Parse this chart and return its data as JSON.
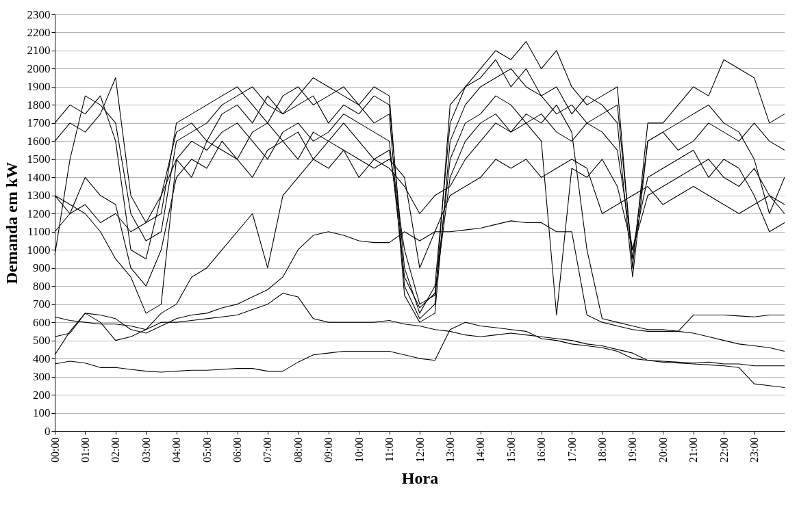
{
  "chart_data": {
    "type": "line",
    "xlabel": "Hora",
    "ylabel": "Demanda em kW",
    "grid": "y",
    "legend": false,
    "xlim": [
      0,
      24
    ],
    "ylim": [
      0,
      2300
    ],
    "xticks": [
      {
        "value": 0,
        "label": "00:00"
      },
      {
        "value": 1,
        "label": "01:00"
      },
      {
        "value": 2,
        "label": "02:00"
      },
      {
        "value": 3,
        "label": "03:00"
      },
      {
        "value": 4,
        "label": "04:00"
      },
      {
        "value": 5,
        "label": "05:00"
      },
      {
        "value": 6,
        "label": "06:00"
      },
      {
        "value": 7,
        "label": "07:00"
      },
      {
        "value": 8,
        "label": "08:00"
      },
      {
        "value": 9,
        "label": "09:00"
      },
      {
        "value": 10,
        "label": "10:00"
      },
      {
        "value": 11,
        "label": "11:00"
      },
      {
        "value": 12,
        "label": "12:00"
      },
      {
        "value": 13,
        "label": "13:00"
      },
      {
        "value": 14,
        "label": "14:00"
      },
      {
        "value": 15,
        "label": "15:00"
      },
      {
        "value": 16,
        "label": "16:00"
      },
      {
        "value": 17,
        "label": "17:00"
      },
      {
        "value": 18,
        "label": "18:00"
      },
      {
        "value": 19,
        "label": "19:00"
      },
      {
        "value": 20,
        "label": "20:00"
      },
      {
        "value": 21,
        "label": "21:00"
      },
      {
        "value": 22,
        "label": "22:00"
      },
      {
        "value": 23,
        "label": "23:00"
      }
    ],
    "yticks": [
      0,
      100,
      200,
      300,
      400,
      500,
      600,
      700,
      800,
      900,
      1000,
      1100,
      1200,
      1300,
      1400,
      1500,
      1600,
      1700,
      1800,
      1900,
      2000,
      2100,
      2200,
      2300
    ],
    "x": [
      0,
      0.5,
      1,
      1.5,
      2,
      2.5,
      3,
      3.5,
      4,
      4.5,
      5,
      5.5,
      6,
      6.5,
      7,
      7.5,
      8,
      8.5,
      9,
      9.5,
      10,
      10.5,
      11,
      11.5,
      12,
      12.5,
      13,
      13.5,
      14,
      14.5,
      15,
      15.5,
      16,
      16.5,
      17,
      17.5,
      18,
      18.5,
      19,
      19.5,
      20,
      20.5,
      21,
      21.5,
      22,
      22.5,
      23,
      23.5,
      24
    ],
    "series": [
      {
        "color": "#000000",
        "values": [
          370,
          385,
          375,
          350,
          350,
          340,
          330,
          325,
          330,
          335,
          335,
          340,
          345,
          345,
          330,
          330,
          380,
          420,
          430,
          440,
          440,
          440,
          440,
          420,
          400,
          390,
          560,
          600,
          580,
          570,
          560,
          550,
          510,
          500,
          480,
          470,
          460,
          440,
          400,
          390,
          385,
          380,
          375,
          380,
          370,
          370,
          360,
          360,
          360
        ]
      },
      {
        "color": "#000000",
        "values": [
          630,
          610,
          600,
          590,
          590,
          580,
          560,
          600,
          600,
          610,
          620,
          630,
          640,
          670,
          700,
          760,
          740,
          620,
          600,
          600,
          600,
          600,
          610,
          590,
          580,
          560,
          550,
          530,
          520,
          530,
          540,
          530,
          520,
          510,
          500,
          480,
          470,
          450,
          430,
          390,
          380,
          375,
          370,
          365,
          360,
          350,
          260,
          250,
          240
        ]
      },
      {
        "color": "#000000",
        "values": [
          520,
          540,
          650,
          640,
          620,
          560,
          540,
          580,
          620,
          640,
          650,
          680,
          700,
          740,
          780,
          850,
          1000,
          1080,
          1100,
          1080,
          1050,
          1040,
          1040,
          1100,
          1050,
          1100,
          1100,
          1110,
          1120,
          1140,
          1160,
          1150,
          1150,
          1100,
          1100,
          640,
          600,
          580,
          560,
          550,
          550,
          550,
          640,
          640,
          640,
          635,
          630,
          640,
          640
        ]
      },
      {
        "color": "#000000",
        "values": [
          1700,
          1800,
          1750,
          1850,
          1600,
          1000,
          950,
          1300,
          1650,
          1700,
          1600,
          1750,
          1800,
          1700,
          1850,
          1750,
          1800,
          1850,
          1700,
          1800,
          1750,
          1850,
          1800,
          900,
          650,
          800,
          1700,
          1900,
          1950,
          2050,
          1900,
          2000,
          1850,
          1750,
          1800,
          1700,
          1750,
          1800,
          950,
          1600,
          1650,
          1700,
          1750,
          1800,
          1700,
          1650,
          1500,
          1200,
          1400
        ]
      },
      {
        "color": "#000000",
        "values": [
          1300,
          1200,
          1400,
          1300,
          1250,
          900,
          800,
          1000,
          1400,
          1500,
          1450,
          1600,
          1500,
          1400,
          1550,
          1600,
          1650,
          1500,
          1600,
          1700,
          1600,
          1500,
          1550,
          1000,
          700,
          750,
          1500,
          1700,
          1750,
          1850,
          1800,
          1700,
          1750,
          1650,
          1600,
          1700,
          1650,
          1550,
          1000,
          1400,
          1450,
          1500,
          1550,
          1400,
          1500,
          1450,
          1300,
          1100,
          1150
        ]
      },
      {
        "color": "#000000",
        "values": [
          1600,
          1700,
          1650,
          1750,
          1950,
          1300,
          1150,
          1200,
          1700,
          1750,
          1800,
          1850,
          1900,
          1800,
          1700,
          1850,
          1900,
          1800,
          1850,
          1900,
          1800,
          1900,
          1850,
          800,
          620,
          700,
          1800,
          1900,
          2000,
          2100,
          2050,
          2150,
          2000,
          2100,
          1900,
          1800,
          1850,
          1900,
          900,
          1700,
          1700,
          1800,
          1900,
          1850,
          2050,
          2000,
          1950,
          1700,
          1750
        ]
      },
      {
        "color": "#000000",
        "values": [
          1300,
          1250,
          1200,
          1100,
          950,
          850,
          650,
          700,
          1500,
          1600,
          1550,
          1650,
          1700,
          1600,
          1500,
          1650,
          1700,
          1600,
          1650,
          1750,
          1700,
          1650,
          1600,
          850,
          680,
          760,
          1400,
          1600,
          1700,
          1750,
          1650,
          1700,
          1600,
          640,
          1450,
          1400,
          1500,
          1350,
          1000,
          1300,
          1350,
          1400,
          1450,
          1500,
          1400,
          1350,
          1450,
          1300,
          1250
        ]
      },
      {
        "color": "#000000",
        "values": [
          420,
          550,
          650,
          600,
          500,
          520,
          560,
          650,
          700,
          850,
          900,
          1000,
          1100,
          1200,
          900,
          1300,
          1400,
          1500,
          1450,
          1550,
          1500,
          1450,
          1500,
          1400,
          900,
          1100,
          1300,
          1350,
          1400,
          1500,
          1450,
          1500,
          1400,
          1450,
          1500,
          1450,
          1200,
          1250,
          1300,
          1350,
          1250,
          1300,
          1350,
          1300,
          1250,
          1200,
          1250,
          1300,
          1200
        ]
      },
      {
        "color": "#000000",
        "values": [
          1100,
          1200,
          1250,
          1150,
          1200,
          1100,
          1150,
          1300,
          1500,
          1400,
          1600,
          1550,
          1500,
          1650,
          1700,
          1600,
          1500,
          1650,
          1600,
          1550,
          1400,
          1500,
          1450,
          1350,
          1200,
          1300,
          1350,
          1500,
          1600,
          1700,
          1650,
          1750,
          1700,
          1800,
          1650,
          1000,
          620,
          600,
          580,
          560,
          560,
          550,
          540,
          520,
          500,
          480,
          470,
          460,
          440
        ]
      },
      {
        "color": "#000000",
        "values": [
          970,
          1500,
          1850,
          1800,
          1700,
          1200,
          1050,
          1100,
          1600,
          1650,
          1700,
          1800,
          1850,
          1900,
          1800,
          1750,
          1850,
          1950,
          1900,
          1850,
          1800,
          1700,
          1750,
          750,
          600,
          650,
          1600,
          1800,
          1900,
          1950,
          2000,
          1900,
          1850,
          1900,
          1750,
          1850,
          1800,
          1700,
          850,
          1600,
          1650,
          1550,
          1600,
          1700,
          1650,
          1600,
          1700,
          1600,
          1550
        ]
      }
    ]
  }
}
